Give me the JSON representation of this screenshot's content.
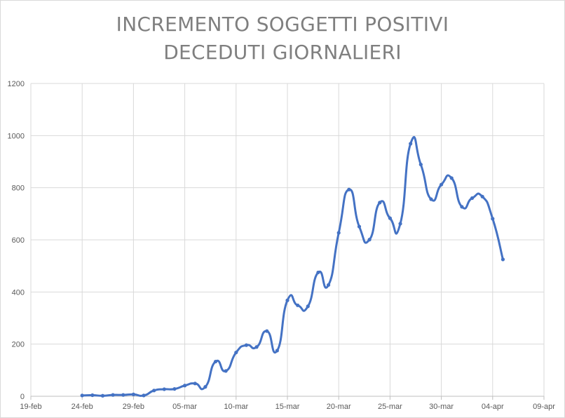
{
  "title_lines": [
    "INCREMENTO SOGGETTI POSITIVI",
    "DECEDUTI GIORNALIERI"
  ],
  "chart_data": {
    "type": "line",
    "title": "INCREMENTO SOGGETTI POSITIVI DECEDUTI GIORNALIERI",
    "xlabel": "",
    "ylabel": "",
    "xlim": [
      "2020-02-19",
      "2020-04-09"
    ],
    "ylim": [
      0,
      1200
    ],
    "y_ticks": [
      0,
      200,
      400,
      600,
      800,
      1000,
      1200
    ],
    "x_ticks": [
      {
        "date": "2020-02-19",
        "label": "19-feb"
      },
      {
        "date": "2020-02-24",
        "label": "24-feb"
      },
      {
        "date": "2020-02-29",
        "label": "29-feb"
      },
      {
        "date": "2020-03-05",
        "label": "05-mar"
      },
      {
        "date": "2020-03-10",
        "label": "10-mar"
      },
      {
        "date": "2020-03-15",
        "label": "15-mar"
      },
      {
        "date": "2020-03-20",
        "label": "20-mar"
      },
      {
        "date": "2020-03-25",
        "label": "25-mar"
      },
      {
        "date": "2020-03-30",
        "label": "30-mar"
      },
      {
        "date": "2020-04-04",
        "label": "04-apr"
      },
      {
        "date": "2020-04-09",
        "label": "09-apr"
      }
    ],
    "grid": true,
    "legend": "none",
    "line_color": "#4472c4",
    "series": [
      {
        "x": [
          "2020-02-24",
          "2020-02-25",
          "2020-02-26",
          "2020-02-27",
          "2020-02-28",
          "2020-02-29",
          "2020-03-01",
          "2020-03-02",
          "2020-03-03",
          "2020-03-04",
          "2020-03-05",
          "2020-03-06",
          "2020-03-07",
          "2020-03-08",
          "2020-03-09",
          "2020-03-10",
          "2020-03-11",
          "2020-03-12",
          "2020-03-13",
          "2020-03-14",
          "2020-03-15",
          "2020-03-16",
          "2020-03-17",
          "2020-03-18",
          "2020-03-19",
          "2020-03-20",
          "2020-03-21",
          "2020-03-22",
          "2020-03-23",
          "2020-03-24",
          "2020-03-25",
          "2020-03-26",
          "2020-03-27",
          "2020-03-28",
          "2020-03-29",
          "2020-03-30",
          "2020-03-31",
          "2020-04-01",
          "2020-04-02",
          "2020-04-03",
          "2020-04-04",
          "2020-04-05"
        ],
        "values": [
          3,
          4,
          2,
          5,
          5,
          7,
          3,
          22,
          27,
          28,
          41,
          49,
          36,
          133,
          97,
          168,
          196,
          189,
          250,
          175,
          368,
          349,
          345,
          475,
          427,
          627,
          793,
          651,
          601,
          743,
          683,
          662,
          969,
          889,
          756,
          812,
          837,
          727,
          760,
          766,
          681,
          525
        ]
      }
    ]
  }
}
